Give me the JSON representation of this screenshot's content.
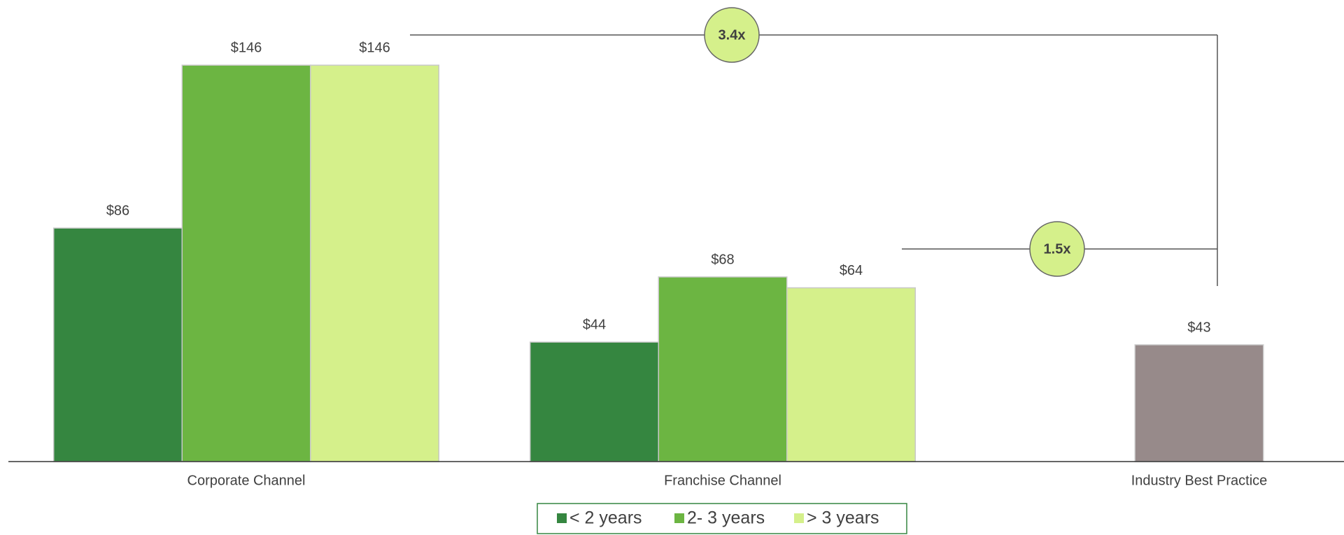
{
  "chart_data": {
    "type": "bar",
    "categories": [
      "Corporate Channel",
      "Franchise Channel",
      "Industry Best Practice"
    ],
    "series": [
      {
        "name": "< 2 years",
        "color": "#358640",
        "values": [
          86,
          44,
          null
        ],
        "value_labels": [
          "$86",
          "$44",
          null
        ]
      },
      {
        "name": "2- 3 years",
        "color": "#6cb542",
        "values": [
          146,
          68,
          null
        ],
        "value_labels": [
          "$146",
          "$68",
          null
        ]
      },
      {
        "name": "> 3 years",
        "color": "#d5f08b",
        "values": [
          146,
          64,
          null
        ],
        "value_labels": [
          "$146",
          "$64",
          null
        ]
      }
    ],
    "benchmark": {
      "color": "#978a8a",
      "value": 43,
      "value_label": "$43"
    },
    "annotations": [
      "3.4x",
      "1.5x"
    ],
    "annotation_color": "#d5f08b",
    "ylim": [
      0,
      170
    ],
    "legend": "bottom"
  }
}
